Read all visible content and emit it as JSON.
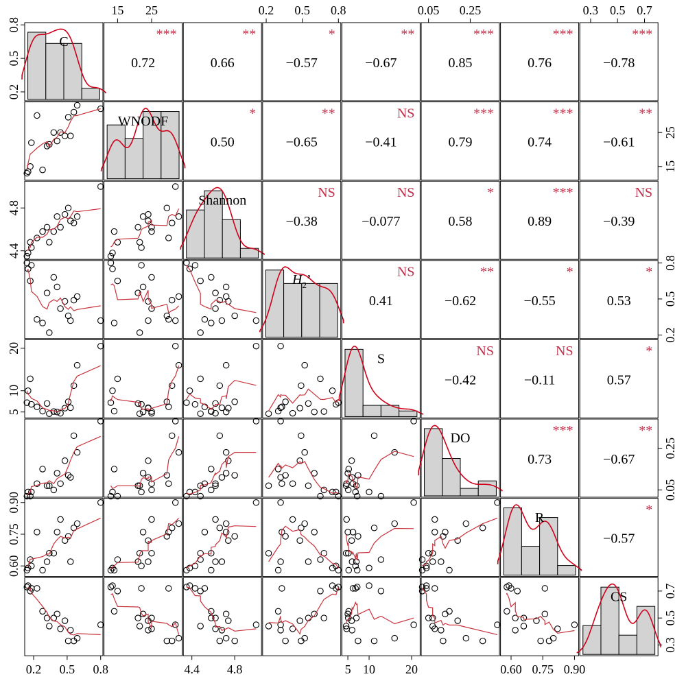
{
  "chart_data": {
    "type": "scatter",
    "subtype": "correlation-matrix",
    "title": "",
    "variables": [
      {
        "id": "C",
        "label": "C",
        "range": [
          0.12,
          0.82
        ],
        "ticks": [
          0.2,
          0.5,
          0.8
        ],
        "tick_labels": [
          "0.2",
          "0.5",
          "0.8"
        ],
        "tick_axis": "bottom"
      },
      {
        "id": "WNODF",
        "label": "WNODF",
        "range": [
          11,
          34
        ],
        "ticks": [
          15,
          25
        ],
        "tick_labels": [
          "15",
          "25"
        ],
        "tick_axis": "top"
      },
      {
        "id": "Shannon",
        "label": "Shannon",
        "range": [
          4.32,
          5.05
        ],
        "ticks": [
          4.4,
          4.8
        ],
        "tick_labels": [
          "4.4",
          "4.8"
        ],
        "tick_axis": "bottom"
      },
      {
        "id": "H2",
        "label": "H",
        "label_sub": "2",
        "label_suffix": "’",
        "range": [
          0.17,
          0.82
        ],
        "ticks": [
          0.2,
          0.5,
          0.8
        ],
        "tick_labels": [
          "0.2",
          "0.5",
          "0.8"
        ],
        "tick_axis": "top"
      },
      {
        "id": "S",
        "label": "S",
        "range": [
          3.6,
          22
        ],
        "ticks": [
          5,
          10,
          20
        ],
        "tick_labels": [
          "5",
          "10",
          "20"
        ],
        "tick_axis": "bottom"
      },
      {
        "id": "DO",
        "label": "DO",
        "range": [
          0.015,
          0.39
        ],
        "ticks": [
          0.05,
          0.25
        ],
        "tick_labels": [
          "0.05",
          "0.25"
        ],
        "tick_axis": "top"
      },
      {
        "id": "R",
        "label": "R",
        "range": [
          0.55,
          0.92
        ],
        "ticks": [
          0.6,
          0.75,
          0.9
        ],
        "tick_labels": [
          "0.60",
          "0.75",
          "0.90"
        ],
        "tick_axis": "bottom"
      },
      {
        "id": "CS",
        "label": "CS",
        "range": [
          0.22,
          0.8
        ],
        "ticks": [
          0.3,
          0.5,
          0.7
        ],
        "tick_labels": [
          "0.3",
          "0.5",
          "0.7"
        ],
        "tick_axis": "top"
      }
    ],
    "observations": [
      {
        "C": 0.14,
        "WNODF": 13.0,
        "Shannon": 4.35,
        "H2": 0.8,
        "S": 7.2,
        "DO": 0.02,
        "R": 0.58,
        "CS": 0.73
      },
      {
        "C": 0.15,
        "WNODF": 13.5,
        "Shannon": 4.38,
        "H2": 0.75,
        "S": 10.0,
        "DO": 0.04,
        "R": 0.59,
        "CS": 0.74
      },
      {
        "C": 0.17,
        "WNODF": 15.0,
        "Shannon": 4.48,
        "H2": 0.65,
        "S": 12.8,
        "DO": 0.02,
        "R": 0.63,
        "CS": 0.7
      },
      {
        "C": 0.18,
        "WNODF": 22.0,
        "Shannon": 4.43,
        "H2": 0.78,
        "S": 6.8,
        "DO": 0.04,
        "R": 0.6,
        "CS": 0.72
      },
      {
        "C": 0.23,
        "WNODF": 30.0,
        "Shannon": 4.52,
        "H2": 0.33,
        "S": 6.2,
        "DO": 0.08,
        "R": 0.76,
        "CS": 0.72
      },
      {
        "C": 0.28,
        "WNODF": 14.0,
        "Shannon": 4.58,
        "H2": 0.3,
        "S": 5.2,
        "DO": 0.15,
        "R": 0.58,
        "CS": 0.55
      },
      {
        "C": 0.32,
        "WNODF": 21.0,
        "Shannon": 4.62,
        "H2": 0.55,
        "S": 7.0,
        "DO": 0.07,
        "R": 0.62,
        "CS": 0.5
      },
      {
        "C": 0.34,
        "WNODF": 21.5,
        "Shannon": 4.48,
        "H2": 0.22,
        "S": 4.6,
        "DO": 0.07,
        "R": 0.66,
        "CS": 0.44
      },
      {
        "C": 0.38,
        "WNODF": 25.0,
        "Shannon": 4.58,
        "H2": 0.68,
        "S": 5.1,
        "DO": 0.05,
        "R": 0.66,
        "CS": 0.5
      },
      {
        "C": 0.41,
        "WNODF": 22.5,
        "Shannon": 4.72,
        "H2": 0.6,
        "S": 5.0,
        "DO": 0.13,
        "R": 0.76,
        "CS": 0.53
      },
      {
        "C": 0.44,
        "WNODF": 25.0,
        "Shannon": 4.62,
        "H2": 0.42,
        "S": 4.7,
        "DO": 0.08,
        "R": 0.82,
        "CS": 0.42
      },
      {
        "C": 0.48,
        "WNODF": 24.0,
        "Shannon": 4.74,
        "H2": 0.48,
        "S": 5.9,
        "DO": 0.19,
        "R": 0.72,
        "CS": 0.48
      },
      {
        "C": 0.51,
        "WNODF": 29.5,
        "Shannon": 4.8,
        "H2": 0.36,
        "S": 7.4,
        "DO": 0.12,
        "R": 0.74,
        "CS": 0.33
      },
      {
        "C": 0.53,
        "WNODF": 24.0,
        "Shannon": 4.68,
        "H2": 0.32,
        "S": 6.0,
        "DO": 0.11,
        "R": 0.62,
        "CS": 0.41
      },
      {
        "C": 0.56,
        "WNODF": 31.0,
        "Shannon": 4.66,
        "H2": 0.49,
        "S": 11.2,
        "DO": 0.31,
        "R": 0.78,
        "CS": 0.33
      },
      {
        "C": 0.59,
        "WNODF": 33.0,
        "Shannon": 4.72,
        "H2": 0.52,
        "S": 16.0,
        "DO": 0.23,
        "R": 0.8,
        "CS": 0.35
      },
      {
        "C": 0.8,
        "WNODF": 32.0,
        "Shannon": 5.0,
        "H2": 0.32,
        "S": 20.5,
        "DO": 0.38,
        "R": 0.9,
        "CS": 0.45
      }
    ],
    "correlations": [
      {
        "row": 1,
        "col": 2,
        "r": "0.72",
        "sig": "***"
      },
      {
        "row": 1,
        "col": 3,
        "r": "0.66",
        "sig": "**"
      },
      {
        "row": 1,
        "col": 4,
        "r": "−0.57",
        "sig": "*"
      },
      {
        "row": 1,
        "col": 5,
        "r": "−0.67",
        "sig": "**"
      },
      {
        "row": 1,
        "col": 6,
        "r": "0.85",
        "sig": "***"
      },
      {
        "row": 1,
        "col": 7,
        "r": "0.76",
        "sig": "***"
      },
      {
        "row": 1,
        "col": 8,
        "r": "−0.78",
        "sig": "***"
      },
      {
        "row": 2,
        "col": 3,
        "r": "0.50",
        "sig": "*"
      },
      {
        "row": 2,
        "col": 4,
        "r": "−0.65",
        "sig": "**"
      },
      {
        "row": 2,
        "col": 5,
        "r": "−0.41",
        "sig": "NS"
      },
      {
        "row": 2,
        "col": 6,
        "r": "0.79",
        "sig": "***"
      },
      {
        "row": 2,
        "col": 7,
        "r": "0.74",
        "sig": "***"
      },
      {
        "row": 2,
        "col": 8,
        "r": "−0.61",
        "sig": "**"
      },
      {
        "row": 3,
        "col": 4,
        "r": "−0.38",
        "sig": "NS"
      },
      {
        "row": 3,
        "col": 5,
        "r": "−0.077",
        "sig": "NS"
      },
      {
        "row": 3,
        "col": 6,
        "r": "0.58",
        "sig": "*"
      },
      {
        "row": 3,
        "col": 7,
        "r": "0.89",
        "sig": "***"
      },
      {
        "row": 3,
        "col": 8,
        "r": "−0.39",
        "sig": "NS"
      },
      {
        "row": 4,
        "col": 5,
        "r": "0.41",
        "sig": "NS"
      },
      {
        "row": 4,
        "col": 6,
        "r": "−0.62",
        "sig": "**"
      },
      {
        "row": 4,
        "col": 7,
        "r": "−0.55",
        "sig": "*"
      },
      {
        "row": 4,
        "col": 8,
        "r": "0.53",
        "sig": "*"
      },
      {
        "row": 5,
        "col": 6,
        "r": "−0.42",
        "sig": "NS"
      },
      {
        "row": 5,
        "col": 7,
        "r": "−0.11",
        "sig": "NS"
      },
      {
        "row": 5,
        "col": 8,
        "r": "0.57",
        "sig": "*"
      },
      {
        "row": 6,
        "col": 7,
        "r": "0.73",
        "sig": "***"
      },
      {
        "row": 6,
        "col": 8,
        "r": "−0.67",
        "sig": "**"
      },
      {
        "row": 7,
        "col": 8,
        "r": "−0.57",
        "sig": "*"
      }
    ],
    "diagonal": "histogram with density curve",
    "lower": "scatter with loess smooth",
    "upper": "correlation coefficient with significance stars",
    "grid": false,
    "legend": "none",
    "colors": {
      "bar_fill": "#d3d3d3",
      "density_line": "#d0021b",
      "smooth_line": "#c8323c",
      "significance_text": "#c0304a",
      "points": "#000000"
    }
  }
}
